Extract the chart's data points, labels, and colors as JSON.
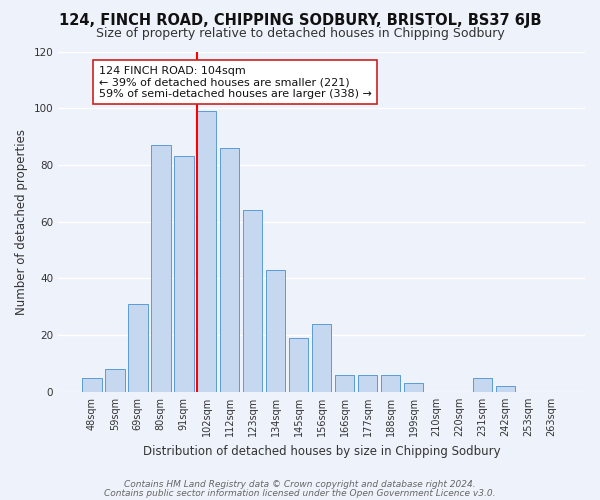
{
  "title": "124, FINCH ROAD, CHIPPING SODBURY, BRISTOL, BS37 6JB",
  "subtitle": "Size of property relative to detached houses in Chipping Sodbury",
  "xlabel": "Distribution of detached houses by size in Chipping Sodbury",
  "ylabel": "Number of detached properties",
  "bar_labels": [
    "48sqm",
    "59sqm",
    "69sqm",
    "80sqm",
    "91sqm",
    "102sqm",
    "112sqm",
    "123sqm",
    "134sqm",
    "145sqm",
    "156sqm",
    "166sqm",
    "177sqm",
    "188sqm",
    "199sqm",
    "210sqm",
    "220sqm",
    "231sqm",
    "242sqm",
    "253sqm",
    "263sqm"
  ],
  "bar_values": [
    5,
    8,
    31,
    87,
    83,
    99,
    86,
    64,
    43,
    19,
    24,
    6,
    6,
    6,
    3,
    0,
    0,
    5,
    2,
    0,
    0
  ],
  "bar_color": "#c5d8f0",
  "bar_edge_color": "#5b9bd5",
  "red_line_index": 5,
  "annotation_line1": "124 FINCH ROAD: 104sqm",
  "annotation_line2": "← 39% of detached houses are smaller (221)",
  "annotation_line3": "59% of semi-detached houses are larger (338) →",
  "ylim": [
    0,
    120
  ],
  "yticks": [
    0,
    20,
    40,
    60,
    80,
    100,
    120
  ],
  "footer1": "Contains HM Land Registry data © Crown copyright and database right 2024.",
  "footer2": "Contains public sector information licensed under the Open Government Licence v3.0.",
  "background_color": "#eef2fa",
  "plot_background_color": "#eef2fa",
  "grid_color": "#ffffff",
  "title_fontsize": 10.5,
  "subtitle_fontsize": 9,
  "axis_label_fontsize": 8.5,
  "tick_fontsize": 7,
  "annotation_fontsize": 8,
  "footer_fontsize": 6.5
}
